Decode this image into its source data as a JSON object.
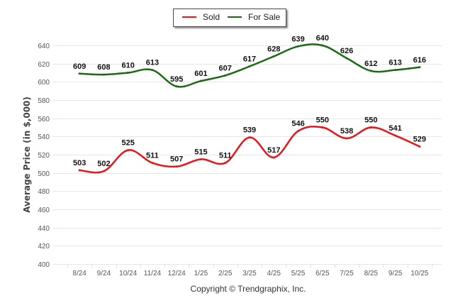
{
  "chart_data": {
    "type": "line",
    "title": "",
    "xlabel": "",
    "ylabel": "Average Price (in $,000)",
    "categories": [
      "8/24",
      "9/24",
      "10/24",
      "11/24",
      "12/24",
      "1/25",
      "2/25",
      "3/25",
      "4/25",
      "5/25",
      "6/25",
      "7/25",
      "8/25",
      "9/25",
      "10/25"
    ],
    "series": [
      {
        "name": "Sold",
        "color": "#e8141b",
        "values": [
          503,
          502,
          525,
          511,
          507,
          515,
          511,
          539,
          517,
          546,
          550,
          538,
          550,
          541,
          529
        ]
      },
      {
        "name": "For Sale",
        "color": "#1a6b12",
        "values": [
          609,
          608,
          610,
          613,
          595,
          601,
          607,
          617,
          628,
          639,
          640,
          626,
          612,
          613,
          616
        ]
      }
    ],
    "ylim": [
      400,
      640
    ],
    "yticks": [
      400,
      420,
      440,
      460,
      480,
      500,
      520,
      540,
      560,
      580,
      600,
      620,
      640
    ],
    "grid": true,
    "legend": "top-center",
    "smooth": true,
    "data_labels": true
  },
  "footer": {
    "copyright": "Copyright © Trendgraphix, Inc."
  }
}
